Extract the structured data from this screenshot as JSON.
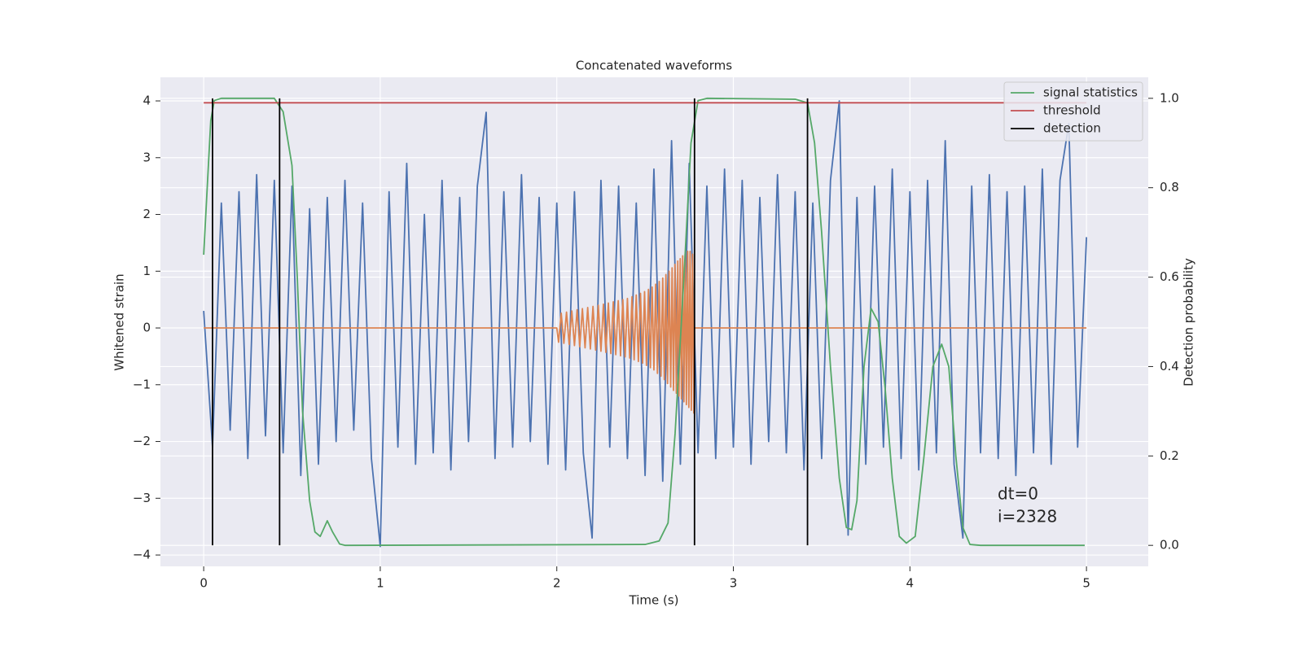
{
  "chart_data": {
    "type": "line",
    "title": "Concatenated waveforms",
    "xlabel": "Time (s)",
    "ylabel": "Whitened strain",
    "y2label": "Detection probability",
    "xlim": [
      -0.245,
      5.35
    ],
    "ylim": [
      -4.2,
      4.416
    ],
    "y2lim": [
      -0.047,
      1.047
    ],
    "xticks": [
      0,
      1,
      2,
      3,
      4,
      5
    ],
    "yticks": [
      {
        "value": -4,
        "label": "−4"
      },
      {
        "value": -3,
        "label": "−3"
      },
      {
        "value": -2,
        "label": "−2"
      },
      {
        "value": -1,
        "label": "−1"
      },
      0,
      1,
      2,
      3,
      4
    ],
    "y2ticks": [
      {
        "value": 0,
        "label": "0.0"
      },
      {
        "value": 0.2,
        "label": "0.2"
      },
      {
        "value": 0.4,
        "label": "0.4"
      },
      {
        "value": 0.6,
        "label": "0.6"
      },
      {
        "value": 0.8,
        "label": "0.8"
      },
      {
        "value": 1,
        "label": "1.0"
      }
    ],
    "grid": true,
    "legend": "upper right",
    "background": "#eaeaf2",
    "annotations": [
      "dt=0",
      "i=2328"
    ],
    "series": [
      {
        "color": "#4c72b0",
        "x": [
          0,
          0.05,
          0.1,
          0.15,
          0.2,
          0.25,
          0.3,
          0.35,
          0.4,
          0.45,
          0.5,
          0.55,
          0.6,
          0.65,
          0.7,
          0.75,
          0.8,
          0.85,
          0.9,
          0.95,
          1,
          1.05,
          1.1,
          1.15,
          1.2,
          1.25,
          1.3,
          1.35,
          1.4,
          1.45,
          1.5,
          1.55,
          1.6,
          1.65,
          1.7,
          1.75,
          1.8,
          1.85,
          1.9,
          1.95,
          2,
          2.05,
          2.1,
          2.15,
          2.2,
          2.25,
          2.3,
          2.35,
          2.4,
          2.45,
          2.5,
          2.55,
          2.6,
          2.65,
          2.7,
          2.75,
          2.8,
          2.85,
          2.9,
          2.95,
          3,
          3.05,
          3.1,
          3.15,
          3.2,
          3.25,
          3.3,
          3.35,
          3.4,
          3.45,
          3.5,
          3.55,
          3.6,
          3.65,
          3.7,
          3.75,
          3.8,
          3.85,
          3.9,
          3.95,
          4,
          4.05,
          4.1,
          4.15,
          4.2,
          4.25,
          4.3,
          4.35,
          4.4,
          4.45,
          4.5,
          4.55,
          4.6,
          4.65,
          4.7,
          4.75,
          4.8,
          4.85,
          4.9,
          4.95,
          5
        ],
        "values": [
          0.3,
          -2.1,
          2.2,
          -1.8,
          2.4,
          -2.3,
          2.7,
          -1.9,
          2.6,
          -2.2,
          2.5,
          -2.6,
          2.1,
          -2.4,
          2.3,
          -2.0,
          2.6,
          -1.8,
          2.2,
          -2.3,
          -3.85,
          2.4,
          -2.1,
          2.9,
          -2.4,
          2.0,
          -2.2,
          2.6,
          -2.5,
          2.3,
          -2.0,
          2.5,
          3.8,
          -2.3,
          2.4,
          -2.1,
          2.7,
          -2.0,
          2.3,
          -2.4,
          2.2,
          -2.5,
          2.4,
          -2.2,
          -3.7,
          2.6,
          -2.1,
          2.5,
          -2.3,
          2.2,
          -2.6,
          2.8,
          -2.7,
          3.3,
          -2.4,
          2.9,
          -2.2,
          2.5,
          -2.3,
          2.8,
          -2.1,
          2.6,
          -2.4,
          2.3,
          -2.0,
          2.7,
          -2.2,
          2.4,
          -2.5,
          2.2,
          -2.3,
          2.6,
          4.0,
          -3.65,
          2.3,
          -2.4,
          2.5,
          -2.1,
          2.8,
          -2.3,
          2.4,
          -2.5,
          2.6,
          -2.2,
          3.3,
          -2.4,
          -3.7,
          2.5,
          -2.2,
          2.7,
          -2.3,
          2.4,
          -2.6,
          2.5,
          -2.2,
          2.8,
          -2.4,
          2.6,
          3.6,
          -2.1,
          1.6
        ]
      },
      {
        "color": "#dd8452",
        "x": [
          0,
          2.0,
          2.01,
          2.025,
          2.04,
          2.055,
          2.07,
          2.085,
          2.1,
          2.115,
          2.13,
          2.145,
          2.16,
          2.175,
          2.19,
          2.205,
          2.22,
          2.235,
          2.25,
          2.264,
          2.278,
          2.292,
          2.306,
          2.32,
          2.334,
          2.348,
          2.361,
          2.374,
          2.387,
          2.4,
          2.413,
          2.426,
          2.438,
          2.45,
          2.462,
          2.474,
          2.486,
          2.497,
          2.508,
          2.519,
          2.53,
          2.54,
          2.55,
          2.56,
          2.57,
          2.58,
          2.59,
          2.6,
          2.609,
          2.618,
          2.627,
          2.636,
          2.645,
          2.653,
          2.661,
          2.669,
          2.677,
          2.685,
          2.692,
          2.699,
          2.706,
          2.713,
          2.72,
          2.727,
          2.734,
          2.741,
          2.748,
          2.755,
          2.762,
          2.769,
          2.776,
          2.78,
          5.0
        ],
        "values": [
          0,
          0,
          -0.25,
          0.26,
          -0.27,
          0.28,
          -0.29,
          0.3,
          -0.31,
          0.32,
          -0.33,
          0.34,
          -0.35,
          0.36,
          -0.37,
          0.38,
          -0.39,
          0.4,
          -0.41,
          0.42,
          -0.43,
          0.44,
          -0.45,
          0.46,
          -0.47,
          0.48,
          -0.49,
          0.5,
          -0.51,
          0.52,
          -0.53,
          0.55,
          -0.56,
          0.58,
          -0.59,
          0.61,
          -0.62,
          0.64,
          -0.66,
          0.68,
          -0.7,
          0.72,
          -0.74,
          0.77,
          -0.8,
          0.82,
          -0.85,
          0.88,
          -0.91,
          0.94,
          -0.98,
          1.0,
          -1.04,
          1.06,
          -1.1,
          1.12,
          -1.15,
          1.18,
          -1.2,
          1.22,
          -1.25,
          1.27,
          -1.3,
          1.3,
          -1.35,
          1.35,
          -1.4,
          1.35,
          -1.45,
          1.3,
          -1.5,
          0,
          0
        ]
      },
      {
        "name": "signal statistics",
        "color": "#55a868",
        "axis": "y2",
        "x": [
          0,
          0.02,
          0.04,
          0.06,
          0.1,
          0.4,
          0.45,
          0.5,
          0.53,
          0.56,
          0.6,
          0.63,
          0.66,
          0.7,
          0.73,
          0.77,
          0.8,
          2.5,
          2.58,
          2.63,
          2.67,
          2.72,
          2.76,
          2.8,
          2.85,
          3.35,
          3.42,
          3.46,
          3.5,
          3.55,
          3.6,
          3.64,
          3.67,
          3.7,
          3.74,
          3.78,
          3.82,
          3.86,
          3.9,
          3.94,
          3.98,
          4.03,
          4.08,
          4.13,
          4.18,
          4.22,
          4.26,
          4.3,
          4.34,
          4.4,
          4.99
        ],
        "values": [
          0.65,
          0.8,
          0.95,
          0.995,
          1.0,
          1.0,
          0.97,
          0.85,
          0.6,
          0.3,
          0.1,
          0.03,
          0.02,
          0.055,
          0.03,
          0.003,
          0,
          0.002,
          0.01,
          0.05,
          0.25,
          0.6,
          0.9,
          0.995,
          1.0,
          0.998,
          0.99,
          0.9,
          0.7,
          0.4,
          0.15,
          0.04,
          0.035,
          0.1,
          0.4,
          0.53,
          0.5,
          0.35,
          0.15,
          0.02,
          0.005,
          0.02,
          0.2,
          0.4,
          0.45,
          0.4,
          0.2,
          0.04,
          0.002,
          0,
          0
        ]
      },
      {
        "name": "threshold",
        "color": "#c44e52",
        "axis": "y2",
        "x": [
          0,
          5
        ],
        "values": [
          0.99,
          0.99
        ]
      },
      {
        "name": "detection",
        "color": "#000000",
        "axis": "y2",
        "x": [
          0.05,
          0.05,
          0.05,
          0.43,
          0.43,
          0.43,
          2.78,
          2.78,
          2.78,
          3.42,
          3.42
        ],
        "values": [
          0,
          1,
          null,
          0,
          1,
          null,
          0,
          1,
          null,
          0,
          1
        ]
      }
    ]
  }
}
